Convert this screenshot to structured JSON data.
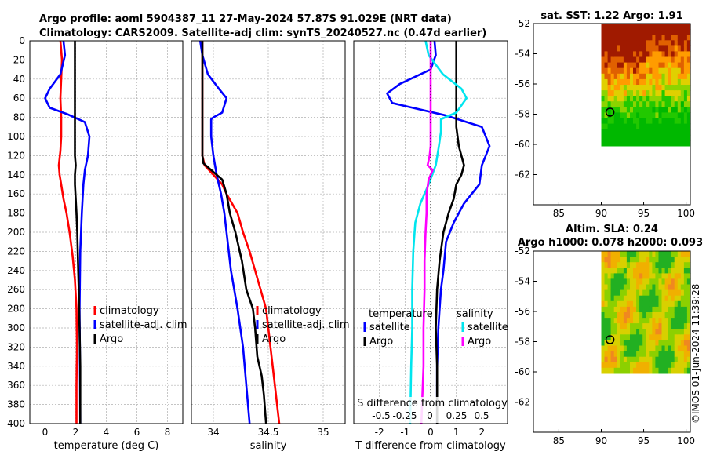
{
  "header": {
    "title_line1": "Argo profile: aoml 5904387_11 27-May-2024 57.87S 91.029E (NRT data)",
    "title_line2": "Climatology: CARS2009. Satellite-adj clim: synTS_20240527.nc (0.47d earlier)"
  },
  "stamp": "©IMOS 01-Jun-2024 11:39:28",
  "colors": {
    "climatology": "#ff0000",
    "satellite": "#0000ff",
    "argo": "#000000",
    "satellite_diff": "#00e5ee",
    "argo_diff": "#ff00ff",
    "grid": "#b0b0b0"
  },
  "chart_data": [
    {
      "type": "line",
      "id": "temperature",
      "xlabel": "temperature (deg C)",
      "xlim": [
        -1,
        9
      ],
      "xticks": [
        0,
        2,
        4,
        6,
        8
      ],
      "xticklabels": [
        "0",
        "2",
        "4",
        "6",
        "8"
      ],
      "ylim": [
        400,
        0
      ],
      "yticks": [
        0,
        20,
        40,
        60,
        80,
        100,
        120,
        140,
        160,
        180,
        200,
        220,
        240,
        260,
        280,
        300,
        320,
        340,
        360,
        380,
        400
      ],
      "yticklabels": [
        "0",
        "20",
        "40",
        "60",
        "80",
        "100",
        "120",
        "140",
        "160",
        "180",
        "200",
        "220",
        "240",
        "260",
        "280",
        "300",
        "320",
        "340",
        "360",
        "380",
        "400"
      ],
      "legend": {
        "location": "lower-right",
        "entries": [
          "climatology",
          "satellite-adj. clim",
          "Argo"
        ]
      },
      "series": [
        {
          "name": "climatology",
          "color": "#ff0000",
          "points": [
            [
              1.0,
              0
            ],
            [
              1.1,
              20
            ],
            [
              1.05,
              40
            ],
            [
              1.0,
              60
            ],
            [
              1.05,
              80
            ],
            [
              1.05,
              100
            ],
            [
              1.0,
              115
            ],
            [
              0.9,
              130
            ],
            [
              0.95,
              140
            ],
            [
              1.05,
              150
            ],
            [
              1.2,
              165
            ],
            [
              1.4,
              180
            ],
            [
              1.6,
              200
            ],
            [
              1.8,
              225
            ],
            [
              1.95,
              250
            ],
            [
              2.05,
              280
            ],
            [
              2.08,
              320
            ],
            [
              2.05,
              360
            ],
            [
              2.05,
              400
            ]
          ]
        },
        {
          "name": "satellite-adj. clim",
          "color": "#0000ff",
          "points": [
            [
              1.2,
              0
            ],
            [
              1.3,
              15
            ],
            [
              1.0,
              35
            ],
            [
              0.3,
              50
            ],
            [
              0.0,
              60
            ],
            [
              0.3,
              70
            ],
            [
              1.5,
              77
            ],
            [
              2.6,
              85
            ],
            [
              2.9,
              100
            ],
            [
              2.8,
              120
            ],
            [
              2.6,
              135
            ],
            [
              2.5,
              150
            ],
            [
              2.4,
              180
            ],
            [
              2.3,
              220
            ],
            [
              2.25,
              280
            ],
            [
              2.28,
              340
            ],
            [
              2.3,
              400
            ]
          ]
        },
        {
          "name": "Argo",
          "color": "#000000",
          "points": [
            [
              1.95,
              0
            ],
            [
              1.95,
              20
            ],
            [
              1.95,
              40
            ],
            [
              1.95,
              60
            ],
            [
              1.95,
              80
            ],
            [
              1.95,
              100
            ],
            [
              1.95,
              120
            ],
            [
              2.0,
              130
            ],
            [
              1.95,
              140
            ],
            [
              1.95,
              150
            ],
            [
              2.0,
              165
            ],
            [
              2.05,
              180
            ],
            [
              2.1,
              200
            ],
            [
              2.15,
              230
            ],
            [
              2.2,
              260
            ],
            [
              2.25,
              300
            ],
            [
              2.3,
              340
            ],
            [
              2.3,
              400
            ]
          ]
        }
      ]
    },
    {
      "type": "line",
      "id": "salinity",
      "xlabel": "salinity",
      "xlim": [
        33.8,
        35.2
      ],
      "xticks": [
        34,
        34.5,
        35
      ],
      "xticklabels": [
        "34",
        "34.5",
        "35"
      ],
      "ylim": [
        400,
        0
      ],
      "legend": {
        "location": "lower-right",
        "entries": [
          "climatology",
          "satellite-adj. clim",
          "Argo"
        ]
      },
      "series": [
        {
          "name": "climatology",
          "color": "#ff0000",
          "points": [
            [
              33.9,
              0
            ],
            [
              33.9,
              40
            ],
            [
              33.9,
              80
            ],
            [
              33.9,
              120
            ],
            [
              33.92,
              130
            ],
            [
              34.0,
              140
            ],
            [
              34.08,
              150
            ],
            [
              34.12,
              160
            ],
            [
              34.17,
              170
            ],
            [
              34.22,
              180
            ],
            [
              34.27,
              200
            ],
            [
              34.33,
              220
            ],
            [
              34.38,
              240
            ],
            [
              34.43,
              260
            ],
            [
              34.48,
              280
            ],
            [
              34.52,
              320
            ],
            [
              34.56,
              360
            ],
            [
              34.6,
              400
            ]
          ]
        },
        {
          "name": "satellite-adj. clim",
          "color": "#0000ff",
          "points": [
            [
              33.88,
              0
            ],
            [
              33.9,
              15
            ],
            [
              33.95,
              35
            ],
            [
              34.05,
              50
            ],
            [
              34.12,
              60
            ],
            [
              34.08,
              75
            ],
            [
              34.0,
              80
            ],
            [
              33.98,
              82
            ],
            [
              33.98,
              100
            ],
            [
              34.0,
              120
            ],
            [
              34.03,
              140
            ],
            [
              34.07,
              160
            ],
            [
              34.1,
              180
            ],
            [
              34.12,
              200
            ],
            [
              34.16,
              240
            ],
            [
              34.22,
              280
            ],
            [
              34.27,
              320
            ],
            [
              34.3,
              360
            ],
            [
              34.33,
              400
            ]
          ]
        },
        {
          "name": "Argo",
          "color": "#000000",
          "points": [
            [
              33.9,
              0
            ],
            [
              33.9,
              40
            ],
            [
              33.9,
              80
            ],
            [
              33.9,
              120
            ],
            [
              33.91,
              128
            ],
            [
              33.98,
              135
            ],
            [
              34.08,
              145
            ],
            [
              34.12,
              160
            ],
            [
              34.15,
              180
            ],
            [
              34.2,
              200
            ],
            [
              34.26,
              230
            ],
            [
              34.3,
              260
            ],
            [
              34.36,
              280
            ],
            [
              34.38,
              300
            ],
            [
              34.4,
              330
            ],
            [
              34.44,
              350
            ],
            [
              34.46,
              370
            ],
            [
              34.48,
              400
            ]
          ]
        }
      ]
    },
    {
      "type": "line",
      "id": "differences",
      "xlabel": "T difference from climatology",
      "xlim": [
        -3,
        3
      ],
      "xticks": [
        -2,
        -1,
        0,
        1,
        2
      ],
      "xticklabels": [
        "-2",
        "-1",
        "0",
        "1",
        "2"
      ],
      "secondary_axis_label": "S difference from climatology",
      "secondary_ticklabels": [
        "-0.5",
        "-0.25",
        "0",
        "0.25",
        "0.5"
      ],
      "secondary_scale": 0.25,
      "ylim": [
        400,
        0
      ],
      "legend": {
        "location": "lower-right",
        "temperature_title": "temperature",
        "salinity_title": "salinity",
        "entries_temperature": [
          "satellite",
          "Argo"
        ],
        "entries_salinity": [
          "satellite",
          "Argo"
        ]
      },
      "series": [
        {
          "name": "temperature satellite",
          "color": "#0000ff",
          "points": [
            [
              0.15,
              0
            ],
            [
              0.2,
              15
            ],
            [
              0,
              30
            ],
            [
              -1.2,
              45
            ],
            [
              -1.7,
              55
            ],
            [
              -1.5,
              65
            ],
            [
              0.6,
              78
            ],
            [
              2.0,
              90
            ],
            [
              2.3,
              110
            ],
            [
              2.0,
              130
            ],
            [
              1.9,
              150
            ],
            [
              1.3,
              170
            ],
            [
              0.9,
              190
            ],
            [
              0.6,
              210
            ],
            [
              0.5,
              240
            ],
            [
              0.4,
              260
            ],
            [
              0.3,
              300
            ],
            [
              0.25,
              340
            ],
            [
              0.25,
              400
            ]
          ]
        },
        {
          "name": "temperature Argo",
          "color": "#000000",
          "points": [
            [
              1.0,
              0
            ],
            [
              1.0,
              30
            ],
            [
              1.0,
              60
            ],
            [
              1.0,
              90
            ],
            [
              1.1,
              110
            ],
            [
              1.3,
              130
            ],
            [
              1.2,
              140
            ],
            [
              1.0,
              150
            ],
            [
              0.9,
              165
            ],
            [
              0.7,
              180
            ],
            [
              0.5,
              200
            ],
            [
              0.35,
              230
            ],
            [
              0.25,
              260
            ],
            [
              0.2,
              300
            ],
            [
              0.25,
              340
            ],
            [
              0.25,
              400
            ]
          ]
        },
        {
          "name": "salinity satellite",
          "color": "#00e5ee",
          "points": [
            [
              -0.05,
              0
            ],
            [
              -0.02,
              15
            ],
            [
              0.12,
              35
            ],
            [
              0.3,
              50
            ],
            [
              0.35,
              60
            ],
            [
              0.25,
              75
            ],
            [
              0.1,
              82
            ],
            [
              0.1,
              95
            ],
            [
              0.08,
              110
            ],
            [
              0.05,
              130
            ],
            [
              -0.02,
              150
            ],
            [
              -0.1,
              170
            ],
            [
              -0.15,
              190
            ],
            [
              -0.17,
              220
            ],
            [
              -0.18,
              260
            ],
            [
              -0.18,
              300
            ],
            [
              -0.19,
              340
            ],
            [
              -0.2,
              400
            ]
          ]
        },
        {
          "name": "salinity Argo",
          "color": "#ff00ff",
          "points": [
            [
              0,
              0
            ],
            [
              0,
              30
            ],
            [
              0,
              60
            ],
            [
              0,
              90
            ],
            [
              0,
              110
            ],
            [
              -0.01,
              120
            ],
            [
              -0.03,
              130
            ],
            [
              0.02,
              135
            ],
            [
              -0.02,
              145
            ],
            [
              -0.04,
              160
            ],
            [
              -0.04,
              180
            ],
            [
              -0.05,
              200
            ],
            [
              -0.06,
              230
            ],
            [
              -0.06,
              260
            ],
            [
              -0.07,
              300
            ],
            [
              -0.07,
              340
            ],
            [
              -0.08,
              370
            ],
            [
              -0.09,
              400
            ]
          ]
        }
      ]
    },
    {
      "type": "heatmap",
      "id": "sst_map",
      "title": "sat. SST: 1.22 Argo: 1.91",
      "xlim": [
        82,
        100.5
      ],
      "ylim": [
        -64,
        -52
      ],
      "xticks": [
        85,
        90,
        95,
        100
      ],
      "yticks": [
        -52,
        -54,
        -56,
        -58,
        -60,
        -62
      ],
      "data_extent": {
        "lon": [
          90,
          100.5
        ],
        "lat": [
          -60.1,
          -52
        ]
      },
      "marker": {
        "lon": 91.03,
        "lat": -57.87
      },
      "palette": [
        "#00b800",
        "#22c800",
        "#8cd400",
        "#e0d000",
        "#ff9c00",
        "#e06000",
        "#a01a00"
      ]
    },
    {
      "type": "heatmap",
      "id": "sla_map",
      "title_line1": "Altim. SLA: 0.24",
      "title_line2": "Argo h1000: 0.078 h2000: 0.093",
      "xlim": [
        82,
        100.5
      ],
      "ylim": [
        -64,
        -52
      ],
      "xticks": [
        85,
        90,
        95,
        100
      ],
      "yticks": [
        -52,
        -54,
        -56,
        -58,
        -60,
        -62
      ],
      "data_extent": {
        "lon": [
          90,
          100.5
        ],
        "lat": [
          -60.1,
          -52
        ]
      },
      "marker": {
        "lon": 91.03,
        "lat": -57.87
      },
      "palette": [
        "#22b022",
        "#8cd000",
        "#d8d000",
        "#f0b000",
        "#f08820"
      ]
    }
  ]
}
